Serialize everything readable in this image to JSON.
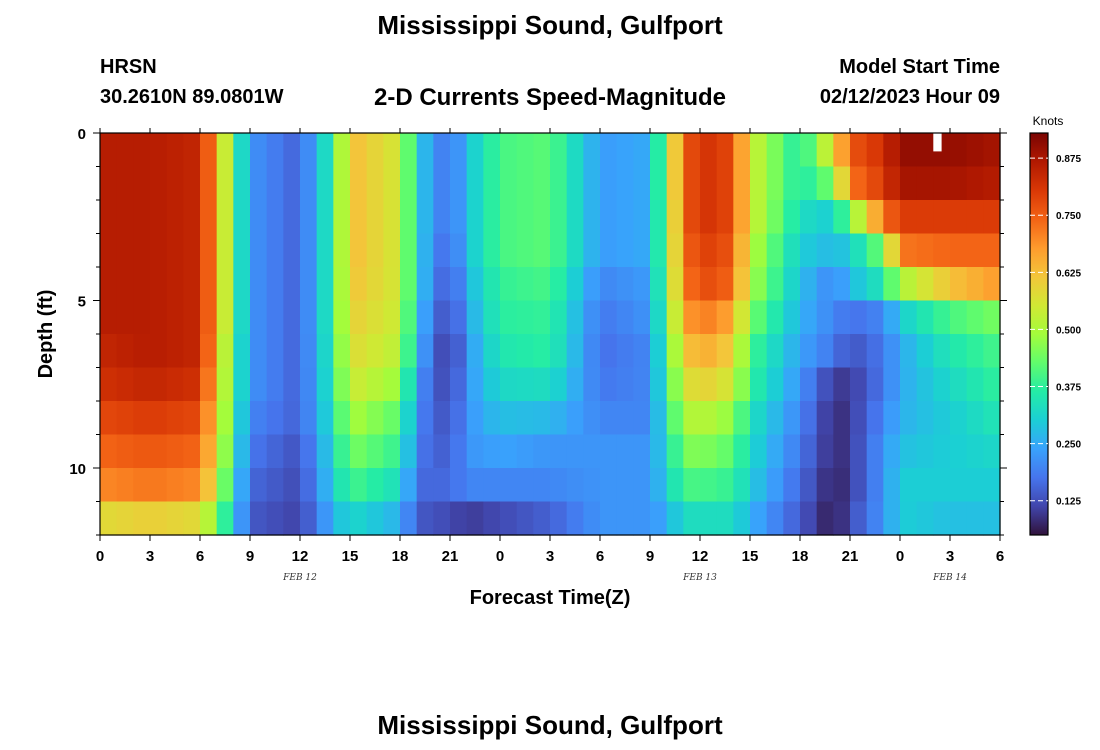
{
  "header": {
    "title": "Mississippi Sound, Gulfport",
    "station": "HRSN",
    "coordinates": "30.2610N  89.0801W",
    "product": "2-D Currents Speed-Magnitude",
    "model_start_label": "Model Start Time",
    "model_start_value": "02/12/2023 Hour 09",
    "footer_title": "Mississippi Sound, Gulfport"
  },
  "chart_data": {
    "type": "heatmap",
    "xlabel": "Forecast Time(Z)",
    "ylabel": "Depth (ft)",
    "x_range_hours": [
      0,
      54
    ],
    "y_range_ft": [
      0,
      12
    ],
    "x_tick_labels": [
      "0",
      "3",
      "6",
      "9",
      "12",
      "15",
      "18",
      "21",
      "0",
      "3",
      "6",
      "9",
      "12",
      "15",
      "18",
      "21",
      "0",
      "3",
      "6"
    ],
    "y_tick_labels": [
      "0",
      "5",
      "10"
    ],
    "y_tick_values": [
      0,
      5,
      10
    ],
    "date_labels": [
      {
        "text": "FEB 12",
        "hour": 12
      },
      {
        "text": "FEB 13",
        "hour": 36
      },
      {
        "text": "FEB 14",
        "hour": 51
      }
    ],
    "colorbar": {
      "title": "Knots",
      "range": [
        0.05,
        0.93
      ],
      "tick_labels": [
        "0.125",
        "0.250",
        "0.375",
        "0.500",
        "0.625",
        "0.750",
        "0.875"
      ],
      "tick_values": [
        0.125,
        0.25,
        0.375,
        0.5,
        0.625,
        0.75,
        0.875
      ],
      "colormap": [
        "#30123b",
        "#4145ab",
        "#4675ed",
        "#39a2fc",
        "#1bcfd4",
        "#24eca6",
        "#61fc6c",
        "#a4fc3b",
        "#d1e834",
        "#f3c63a",
        "#fe9b2d",
        "#f36315",
        "#d93806",
        "#b11901",
        "#7a0402"
      ]
    },
    "depth_levels_ft": [
      0.5,
      1.5,
      2.5,
      3.5,
      4.5,
      5.5,
      6.5,
      7.5,
      8.5,
      9.5,
      10.5,
      11.5
    ],
    "time_hours": [
      0,
      3,
      6,
      7,
      8,
      9,
      12,
      14,
      15,
      18,
      19,
      21,
      22,
      24,
      27,
      30,
      33,
      34,
      35,
      36,
      38,
      39,
      42,
      44,
      45,
      47,
      48,
      51,
      54
    ],
    "speed_knots": [
      [
        0.86,
        0.86,
        0.84,
        0.66,
        0.42,
        0.22,
        0.15,
        0.38,
        0.63,
        0.55,
        0.3,
        0.16,
        0.28,
        0.4,
        0.42,
        0.23,
        0.25,
        0.48,
        0.74,
        0.82,
        0.78,
        0.55,
        0.35,
        0.58,
        0.76,
        0.82,
        0.9,
        0.9,
        0.88
      ],
      [
        0.86,
        0.86,
        0.84,
        0.66,
        0.42,
        0.22,
        0.15,
        0.38,
        0.63,
        0.55,
        0.3,
        0.16,
        0.28,
        0.4,
        0.42,
        0.23,
        0.25,
        0.48,
        0.74,
        0.82,
        0.78,
        0.55,
        0.35,
        0.45,
        0.72,
        0.8,
        0.88,
        0.88,
        0.86
      ],
      [
        0.86,
        0.86,
        0.84,
        0.66,
        0.42,
        0.22,
        0.15,
        0.38,
        0.63,
        0.55,
        0.3,
        0.16,
        0.28,
        0.4,
        0.42,
        0.23,
        0.25,
        0.46,
        0.74,
        0.82,
        0.78,
        0.55,
        0.33,
        0.3,
        0.45,
        0.72,
        0.8,
        0.8,
        0.8
      ],
      [
        0.86,
        0.86,
        0.84,
        0.66,
        0.42,
        0.22,
        0.15,
        0.38,
        0.63,
        0.55,
        0.3,
        0.14,
        0.28,
        0.4,
        0.42,
        0.23,
        0.25,
        0.46,
        0.72,
        0.8,
        0.76,
        0.52,
        0.3,
        0.27,
        0.3,
        0.45,
        0.72,
        0.74,
        0.74
      ],
      [
        0.86,
        0.86,
        0.84,
        0.66,
        0.42,
        0.22,
        0.15,
        0.38,
        0.62,
        0.55,
        0.3,
        0.12,
        0.26,
        0.38,
        0.4,
        0.2,
        0.23,
        0.45,
        0.7,
        0.78,
        0.74,
        0.5,
        0.28,
        0.2,
        0.27,
        0.35,
        0.5,
        0.62,
        0.68
      ],
      [
        0.86,
        0.86,
        0.84,
        0.66,
        0.42,
        0.22,
        0.15,
        0.38,
        0.6,
        0.54,
        0.28,
        0.1,
        0.24,
        0.37,
        0.38,
        0.18,
        0.22,
        0.42,
        0.66,
        0.72,
        0.66,
        0.45,
        0.26,
        0.2,
        0.17,
        0.2,
        0.3,
        0.4,
        0.45
      ],
      [
        0.84,
        0.86,
        0.84,
        0.64,
        0.4,
        0.22,
        0.15,
        0.37,
        0.58,
        0.52,
        0.26,
        0.08,
        0.22,
        0.35,
        0.37,
        0.17,
        0.2,
        0.4,
        0.6,
        0.66,
        0.6,
        0.4,
        0.24,
        0.18,
        0.13,
        0.18,
        0.25,
        0.35,
        0.4
      ],
      [
        0.82,
        0.84,
        0.82,
        0.62,
        0.4,
        0.22,
        0.15,
        0.36,
        0.55,
        0.48,
        0.22,
        0.1,
        0.22,
        0.32,
        0.33,
        0.18,
        0.2,
        0.38,
        0.55,
        0.6,
        0.55,
        0.38,
        0.22,
        0.1,
        0.1,
        0.18,
        0.25,
        0.32,
        0.38
      ],
      [
        0.78,
        0.8,
        0.78,
        0.6,
        0.38,
        0.2,
        0.15,
        0.34,
        0.5,
        0.42,
        0.2,
        0.12,
        0.22,
        0.28,
        0.27,
        0.2,
        0.2,
        0.35,
        0.5,
        0.52,
        0.47,
        0.34,
        0.2,
        0.08,
        0.1,
        0.2,
        0.26,
        0.3,
        0.35
      ],
      [
        0.74,
        0.76,
        0.74,
        0.58,
        0.36,
        0.18,
        0.13,
        0.32,
        0.45,
        0.38,
        0.18,
        0.14,
        0.22,
        0.24,
        0.22,
        0.22,
        0.22,
        0.32,
        0.45,
        0.46,
        0.42,
        0.32,
        0.18,
        0.08,
        0.1,
        0.22,
        0.28,
        0.3,
        0.32
      ],
      [
        0.7,
        0.72,
        0.7,
        0.54,
        0.33,
        0.16,
        0.12,
        0.3,
        0.4,
        0.33,
        0.16,
        0.16,
        0.2,
        0.2,
        0.2,
        0.22,
        0.22,
        0.3,
        0.4,
        0.4,
        0.38,
        0.3,
        0.16,
        0.07,
        0.1,
        0.22,
        0.3,
        0.3,
        0.3
      ],
      [
        0.58,
        0.6,
        0.58,
        0.45,
        0.3,
        0.14,
        0.11,
        0.26,
        0.32,
        0.26,
        0.14,
        0.12,
        0.1,
        0.12,
        0.15,
        0.22,
        0.22,
        0.25,
        0.33,
        0.33,
        0.33,
        0.26,
        0.14,
        0.06,
        0.12,
        0.22,
        0.3,
        0.28,
        0.28
      ]
    ]
  }
}
